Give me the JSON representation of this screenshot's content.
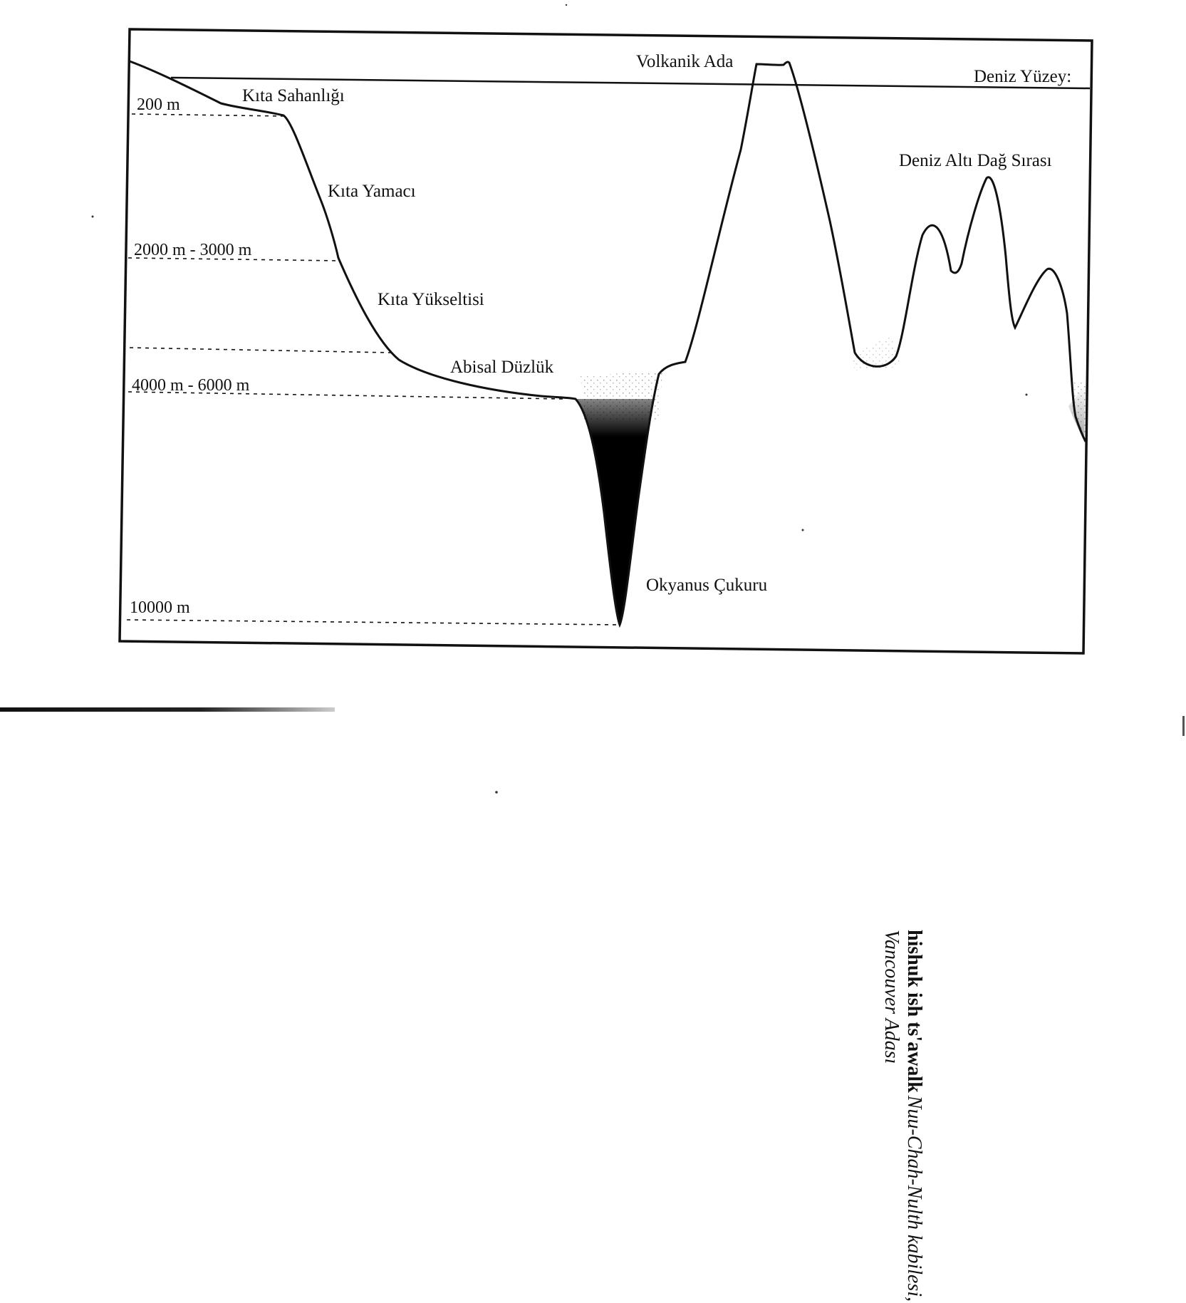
{
  "diagram": {
    "labels": {
      "continental_shelf": "Kıta Sahanlığı",
      "continental_slope": "Kıta Yamacı",
      "continental_rise": "Kıta Yükseltisi",
      "abyssal_plain": "Abisal Düzlük",
      "ocean_trench": "Okyanus Çukuru",
      "volcanic_island": "Volkanik Ada",
      "sea_surface": "Deniz Yüzey:",
      "undersea_ridge": "Deniz Altı Dağ Sırası"
    },
    "depths": {
      "d200": "200 m",
      "d2000_3000": "2000 m - 3000 m",
      "d4000_6000": "4000 m - 6000 m",
      "d10000": "10000 m"
    }
  },
  "caption": {
    "title": "hishuk ish ts'awalk",
    "subtitle": "Nuu-Chah-Nulth kabilesi, Vancouver Adası"
  }
}
